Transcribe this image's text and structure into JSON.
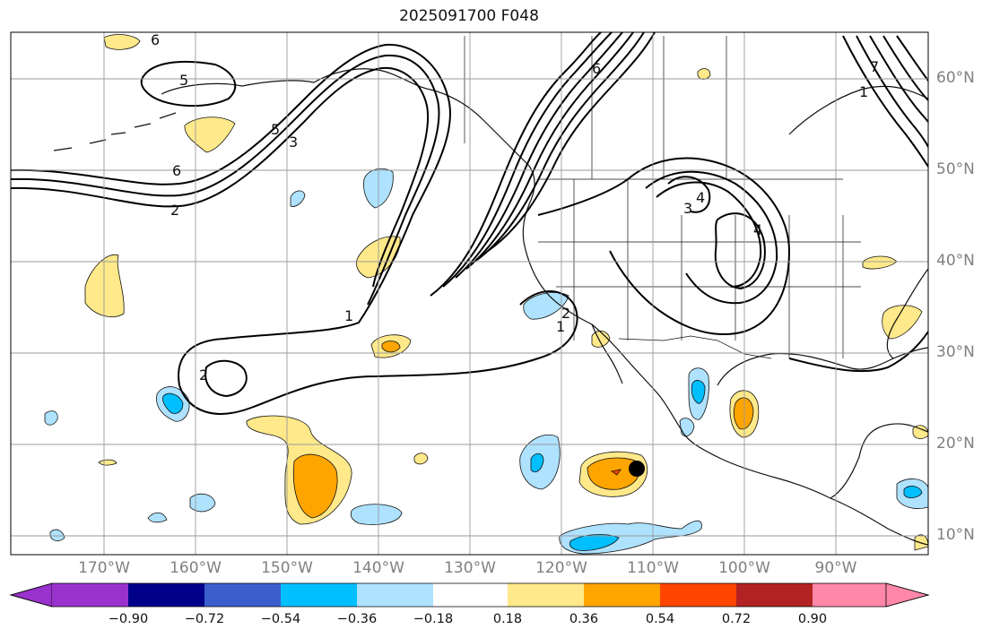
{
  "title": "2025091700 F048",
  "map": {
    "lat_labels": [
      "60°N",
      "50°N",
      "40°N",
      "30°N",
      "20°N",
      "10°N"
    ],
    "lon_labels": [
      "170°W",
      "160°W",
      "150°W",
      "140°W",
      "130°W",
      "120°W",
      "110°W",
      "100°W",
      "90°W"
    ],
    "contour_labels": [
      "6",
      "5",
      "5",
      "3",
      "6",
      "2",
      "1",
      "2",
      "1",
      "3",
      "4",
      "4",
      "2",
      "7",
      "6",
      "1"
    ],
    "marker": {
      "name": "storm-center",
      "lon": -110.0,
      "lat": 17.5
    }
  },
  "colorbar": {
    "tick_labels": [
      "−0.90",
      "−0.72",
      "−0.54",
      "−0.36",
      "−0.18",
      "0.18",
      "0.36",
      "0.54",
      "0.72",
      "0.90"
    ],
    "colors": [
      "#9932cc",
      "#00008b",
      "#3a5fcd",
      "#00bfff",
      "#aee2ff",
      "#ffffff",
      "#ffe98a",
      "#ffa500",
      "#ff4500",
      "#b22222",
      "#ff87a8"
    ]
  }
}
